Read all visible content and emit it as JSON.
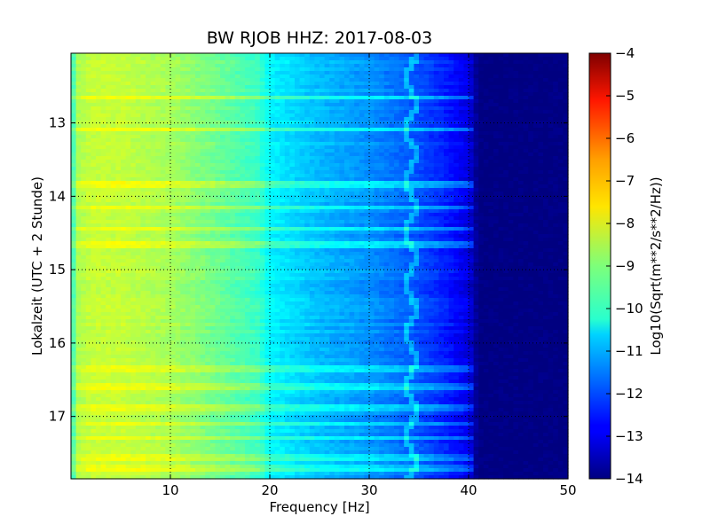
{
  "chart_data": {
    "type": "heatmap",
    "title": "BW RJOB HHZ: 2017-08-03",
    "xlabel": "Frequency [Hz]",
    "ylabel": "Lokalzeit (UTC + 2 Stunde)",
    "xlim": [
      0,
      50
    ],
    "ylim": [
      12.05,
      17.85
    ],
    "y_inverted": true,
    "x_ticks": [
      10,
      20,
      30,
      40,
      50
    ],
    "y_ticks": [
      13,
      14,
      15,
      16,
      17
    ],
    "grid": true,
    "colorbar": {
      "label": "Log10(Sqrt(m**2/s**2/Hz))",
      "range": [
        -14,
        -4
      ],
      "ticks": [
        -4,
        -5,
        -6,
        -7,
        -8,
        -9,
        -10,
        -11,
        -12,
        -13,
        -14
      ],
      "colormap": "jet"
    },
    "spectral_profile": {
      "frequency_hz": [
        0,
        2,
        5,
        10,
        15,
        19,
        20,
        25,
        30,
        34,
        37,
        40,
        41,
        50
      ],
      "log10_amplitude": [
        -8.7,
        -8.3,
        -8.3,
        -8.6,
        -9.2,
        -9.7,
        -10.3,
        -10.9,
        -11.3,
        -11.8,
        -12.3,
        -13.0,
        -14.0,
        -14.0
      ]
    },
    "narrowband_line_hz": 34.2,
    "broadband_events_hour": [
      12.66,
      13.08,
      13.84,
      14.15,
      14.45,
      14.66,
      16.35,
      16.6,
      16.88,
      17.1,
      17.3,
      17.55,
      17.7
    ]
  }
}
